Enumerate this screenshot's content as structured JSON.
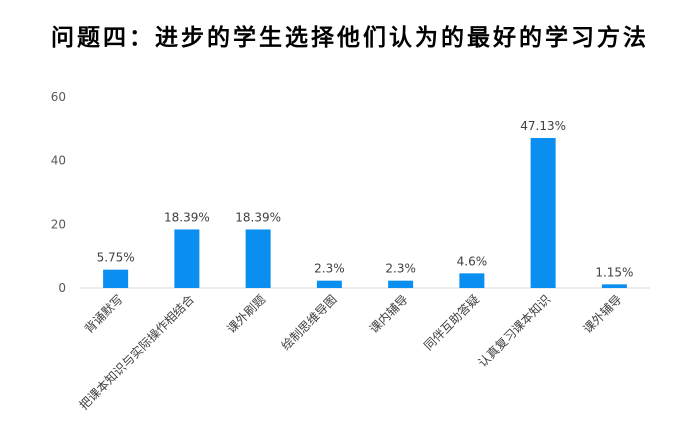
{
  "chart_data": {
    "type": "bar",
    "title": "问题四：进步的学生选择他们认为的最好的学习方法",
    "xlabel": "",
    "ylabel": "",
    "ylim": [
      0,
      60
    ],
    "yticks": [
      0,
      20,
      40,
      60
    ],
    "grid": false,
    "legend": "none",
    "bar_color": "#0a8ff0",
    "categories": [
      "背诵默写",
      "把课本知识与实际操作相结合",
      "课外刷题",
      "绘制思维导图",
      "课内辅导",
      "同伴互助答疑",
      "认真复习课本知识",
      "课外辅导"
    ],
    "values": [
      5.75,
      18.39,
      18.39,
      2.3,
      2.3,
      4.6,
      47.13,
      1.15
    ],
    "data_labels": [
      "5.75%",
      "18.39%",
      "18.39%",
      "2.3%",
      "2.3%",
      "4.6%",
      "47.13%",
      "1.15%"
    ]
  }
}
